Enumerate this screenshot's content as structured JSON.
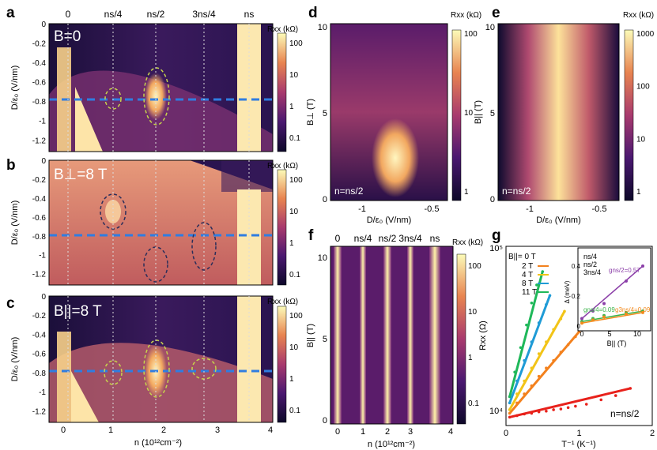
{
  "panels": {
    "a": {
      "letter": "a",
      "inset": "B=0"
    },
    "b": {
      "letter": "b",
      "inset": "B⊥=8 T"
    },
    "c": {
      "letter": "c",
      "inset": "B||=8 T"
    },
    "d": {
      "letter": "d",
      "inset": "n=ns/2"
    },
    "e": {
      "letter": "e",
      "inset": "n=ns/2"
    },
    "f": {
      "letter": "f"
    },
    "g": {
      "letter": "g",
      "inset": "n=ns/2"
    }
  },
  "abc": {
    "top_labels": [
      "0",
      "ns/4",
      "ns/2",
      "3ns/4",
      "ns"
    ],
    "x_ticks": [
      "0",
      "1",
      "2",
      "3",
      "4"
    ],
    "xlabel": "n (10¹²cm⁻²)",
    "ylabel": "D/ε₀ (V/nm)",
    "y_ticks": [
      "0",
      "-0.2",
      "-0.4",
      "-0.6",
      "-0.8",
      "-1",
      "-1.2"
    ],
    "colorbar_title": "Rxx (kΩ)",
    "colorbar_ticks": [
      "100",
      "10",
      "1",
      "0.1"
    ]
  },
  "d": {
    "ylabel": "B⊥ (T)",
    "y_ticks": [
      "10",
      "5",
      "0"
    ],
    "x_ticks": [
      "-1",
      "-0.5"
    ],
    "xlabel": "D/ε₀ (V/nm)",
    "colorbar_title": "Rxx (kΩ)",
    "colorbar_ticks": [
      "100",
      "10",
      "1"
    ]
  },
  "e": {
    "ylabel": "B|| (T)",
    "y_ticks": [
      "10",
      "5",
      "0"
    ],
    "x_ticks": [
      "-1",
      "-0.5"
    ],
    "xlabel": "D/ε₀ (V/nm)",
    "colorbar_title": "Rxx (kΩ)",
    "colorbar_ticks": [
      "1000",
      "100",
      "10",
      "1"
    ]
  },
  "f": {
    "top_labels": [
      "0",
      "ns/4",
      "ns/2",
      "3ns/4",
      "ns"
    ],
    "ylabel": "B|| (T)",
    "y_ticks": [
      "10",
      "5",
      "0"
    ],
    "x_ticks": [
      "0",
      "1",
      "2",
      "3",
      "4"
    ],
    "xlabel": "n (10¹²cm⁻²)",
    "colorbar_title": "Rxx (kΩ)",
    "colorbar_ticks": [
      "100",
      "10",
      "1",
      "0.1"
    ]
  },
  "g": {
    "ylabel": "Rxx (Ω)",
    "xlabel": "T⁻¹ (K⁻¹)",
    "x_ticks": [
      "0",
      "1",
      "2"
    ],
    "y_ticks": [
      "10⁵",
      "10⁴"
    ],
    "legend_title": "B||= 0 T",
    "legend": [
      "0 T",
      "2 T",
      "4 T",
      "8 T",
      "11 T"
    ],
    "inset": {
      "ylabel": "Δ (meV)",
      "xlabel": "B|| (T)",
      "x_ticks": [
        "0",
        "5",
        "10"
      ],
      "y_ticks": [
        "0.4",
        "0.2",
        "0"
      ],
      "legend": [
        "ns/4",
        "ns/2",
        "3ns/4"
      ],
      "annotations": [
        "gns/2=0.57",
        "gns/4=0.09",
        "g3ns/4=0.09"
      ]
    }
  },
  "colors": {
    "series": [
      "#e8211b",
      "#f3811d",
      "#f2c417",
      "#1f9bd6",
      "#1fb85a"
    ],
    "inset_series": [
      "#3cb44b",
      "#8b3fa8",
      "#f28a1c"
    ],
    "dashed_blue": "#2f7de1",
    "ellipse_green": "#c7d44b",
    "ellipse_dark": "#2b2e5a"
  },
  "chart_data": [
    {
      "panel": "g",
      "type": "scatter",
      "xlabel": "T⁻¹ (K⁻¹)",
      "ylabel": "Rxx (Ω)",
      "xlim": [
        0,
        2
      ],
      "ylim": [
        8000,
        100000
      ],
      "yscale": "log",
      "series": [
        {
          "name": "0 T",
          "x": [
            0.05,
            0.15,
            0.25,
            0.35,
            0.45,
            0.55,
            0.65,
            0.75,
            0.85,
            0.95,
            1.1,
            1.3,
            1.5,
            1.7
          ],
          "y": [
            9000,
            9200,
            9400,
            9500,
            9700,
            9800,
            10000,
            10100,
            10300,
            10500,
            10800,
            11500,
            12200,
            13500
          ]
        },
        {
          "name": "2 T",
          "x": [
            0.05,
            0.15,
            0.25,
            0.35,
            0.45,
            0.55,
            0.65,
            0.75,
            0.85,
            0.95,
            1.0
          ],
          "y": [
            9500,
            11000,
            12500,
            14000,
            16000,
            18000,
            20000,
            22500,
            25000,
            28000,
            30000
          ]
        },
        {
          "name": "4 T",
          "x": [
            0.05,
            0.15,
            0.25,
            0.35,
            0.45,
            0.55,
            0.65,
            0.75,
            0.8
          ],
          "y": [
            10000,
            12500,
            15000,
            18000,
            22000,
            26000,
            31000,
            36000,
            40000
          ]
        },
        {
          "name": "8 T",
          "x": [
            0.05,
            0.15,
            0.25,
            0.35,
            0.45,
            0.55,
            0.6
          ],
          "y": [
            11000,
            15000,
            20000,
            26000,
            34000,
            44000,
            50000
          ]
        },
        {
          "name": "11 T",
          "x": [
            0.05,
            0.12,
            0.2,
            0.28,
            0.35,
            0.42,
            0.5
          ],
          "y": [
            12000,
            17000,
            24000,
            33000,
            45000,
            58000,
            70000
          ]
        }
      ]
    },
    {
      "panel": "g-inset",
      "type": "scatter",
      "xlabel": "B|| (T)",
      "ylabel": "Δ (meV)",
      "xlim": [
        0,
        12
      ],
      "ylim": [
        0,
        0.5
      ],
      "series": [
        {
          "name": "ns/4",
          "x": [
            0,
            2,
            4,
            8,
            11
          ],
          "y": [
            0.03,
            0.05,
            0.07,
            0.09,
            0.1
          ]
        },
        {
          "name": "ns/2",
          "x": [
            0,
            2,
            4,
            8,
            11
          ],
          "y": [
            0.05,
            0.1,
            0.15,
            0.3,
            0.4
          ]
        },
        {
          "name": "3ns/4",
          "x": [
            0,
            2,
            4,
            8,
            11
          ],
          "y": [
            0.02,
            0.04,
            0.06,
            0.08,
            0.09
          ]
        }
      ]
    }
  ]
}
